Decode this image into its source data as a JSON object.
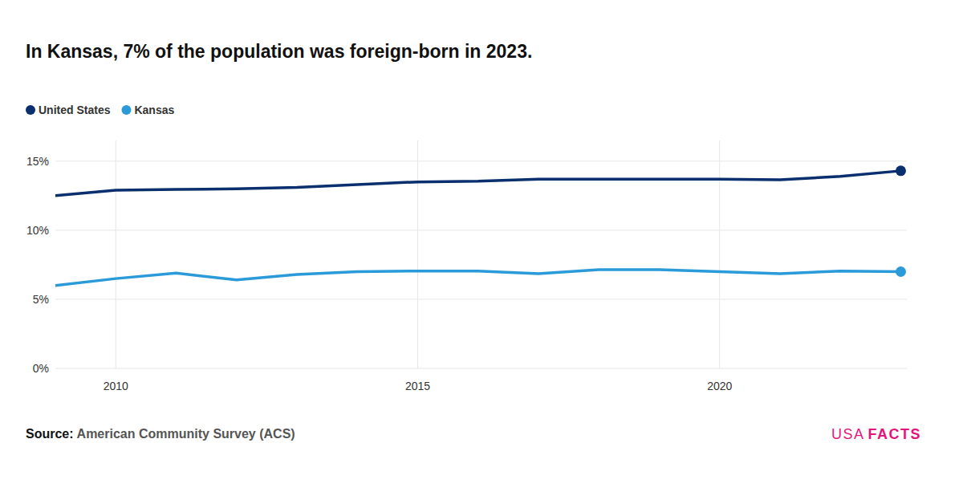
{
  "chart_data": {
    "type": "line",
    "title": "In Kansas, 7% of the population was foreign-born in 2023.",
    "x": [
      2009,
      2010,
      2011,
      2012,
      2013,
      2014,
      2015,
      2016,
      2017,
      2018,
      2019,
      2020,
      2021,
      2022,
      2023
    ],
    "series": [
      {
        "name": "United States",
        "color": "#0a2f6e",
        "marker": "circle",
        "values": [
          12.5,
          12.9,
          12.95,
          13.0,
          13.1,
          13.3,
          13.5,
          13.55,
          13.7,
          13.7,
          13.7,
          13.7,
          13.65,
          13.9,
          14.3
        ]
      },
      {
        "name": "Kansas",
        "color": "#2b9ad9",
        "marker": "circle",
        "values": [
          6.0,
          6.5,
          6.9,
          6.4,
          6.8,
          7.0,
          7.05,
          7.05,
          6.85,
          7.15,
          7.15,
          7.0,
          6.85,
          7.05,
          7.0
        ]
      }
    ],
    "xlim": [
      2009,
      2023.1
    ],
    "xticks": [
      2010,
      2015,
      2020
    ],
    "ylim": [
      0,
      16.5
    ],
    "yticks": [
      {
        "value": 0,
        "label": "0%"
      },
      {
        "value": 5,
        "label": "5%"
      },
      {
        "value": 10,
        "label": "10%"
      },
      {
        "value": 15,
        "label": "15%"
      }
    ],
    "grid": true,
    "legend": "top-left",
    "source_label": "Source:",
    "source": "American Community Survey (ACS)",
    "brand_light": "USA",
    "brand_bold": "FACTS"
  }
}
